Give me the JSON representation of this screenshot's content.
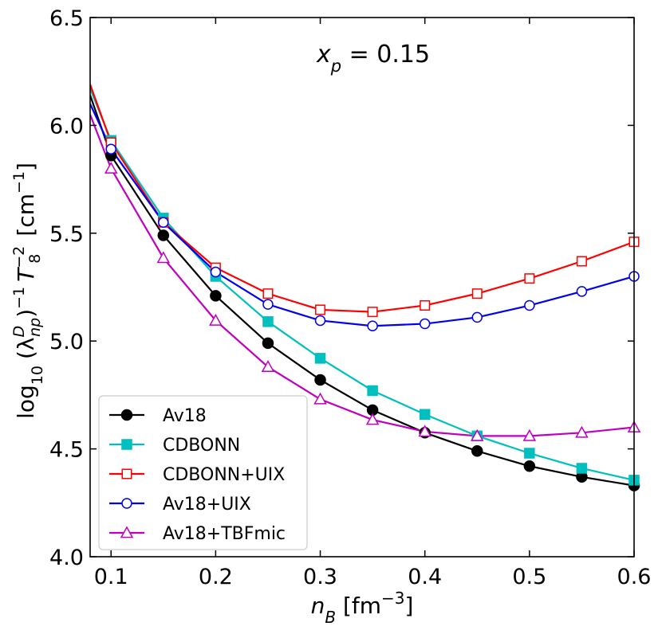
{
  "chart_data": {
    "type": "line",
    "title": "",
    "annotation": {
      "var": "x",
      "sub": "p",
      "rest": " = 0.15"
    },
    "xlabel": {
      "main": "n",
      "sub": "B",
      "unit_open": " [fm",
      "sup": "−3",
      "unit_close": "]"
    },
    "ylabel": {
      "pre": "log",
      "sub10": "10",
      "lambda": "(λ",
      "lambda_sup": "D",
      "lambda_sub": "np",
      "close": ")",
      "inv": "−1",
      "T": "T",
      "T_sub": "8",
      "T_sup": "−2",
      "unit_open": "[cm",
      "unit_sup": "−1",
      "unit_close": "]"
    },
    "xlim": [
      0.08,
      0.6
    ],
    "ylim": [
      4.0,
      6.5
    ],
    "xticks": [
      0.1,
      0.2,
      0.3,
      0.4,
      0.5,
      0.6
    ],
    "xtick_labels": [
      "0.1",
      "0.2",
      "0.3",
      "0.4",
      "0.5",
      "0.6"
    ],
    "yticks": [
      4.0,
      4.5,
      5.0,
      5.5,
      6.0,
      6.5
    ],
    "ytick_labels": [
      "4.0",
      "4.5",
      "5.0",
      "5.5",
      "6.0",
      "6.5"
    ],
    "legend_position": "lower-left",
    "series": [
      {
        "name": "Av18",
        "color": "#000000",
        "marker": "circle",
        "filled": true,
        "line_x": [
          0.08,
          0.1,
          0.15,
          0.2,
          0.25,
          0.3,
          0.35,
          0.4,
          0.45,
          0.5,
          0.55,
          0.6
        ],
        "line_y": [
          6.14,
          5.86,
          5.49,
          5.21,
          4.99,
          4.82,
          4.68,
          4.575,
          4.49,
          4.42,
          4.37,
          4.33
        ],
        "x": [
          0.1,
          0.15,
          0.2,
          0.25,
          0.3,
          0.35,
          0.4,
          0.45,
          0.5,
          0.55,
          0.6
        ],
        "y": [
          5.86,
          5.49,
          5.21,
          4.99,
          4.82,
          4.68,
          4.575,
          4.49,
          4.42,
          4.37,
          4.33
        ]
      },
      {
        "name": "CDBONN",
        "color": "#00bfbf",
        "marker": "square",
        "filled": true,
        "line_x": [
          0.08,
          0.1,
          0.15,
          0.2,
          0.25,
          0.3,
          0.35,
          0.4,
          0.45,
          0.5,
          0.55,
          0.6
        ],
        "line_y": [
          6.17,
          5.93,
          5.57,
          5.3,
          5.09,
          4.92,
          4.77,
          4.66,
          4.56,
          4.48,
          4.41,
          4.355
        ],
        "x": [
          0.1,
          0.15,
          0.2,
          0.25,
          0.3,
          0.35,
          0.4,
          0.45,
          0.5,
          0.55,
          0.6
        ],
        "y": [
          5.93,
          5.57,
          5.3,
          5.09,
          4.92,
          4.77,
          4.66,
          4.56,
          4.48,
          4.41,
          4.355
        ]
      },
      {
        "name": "CDBONN+UIX",
        "color": "#ff0000",
        "marker": "square",
        "filled": false,
        "line_x": [
          0.08,
          0.1,
          0.15,
          0.2,
          0.25,
          0.3,
          0.35,
          0.4,
          0.45,
          0.5,
          0.55,
          0.6
        ],
        "line_y": [
          6.19,
          5.92,
          5.55,
          5.34,
          5.22,
          5.145,
          5.135,
          5.165,
          5.22,
          5.29,
          5.37,
          5.46
        ],
        "x": [
          0.1,
          0.15,
          0.2,
          0.25,
          0.3,
          0.35,
          0.4,
          0.45,
          0.5,
          0.55,
          0.6
        ],
        "y": [
          5.92,
          5.55,
          5.34,
          5.22,
          5.145,
          5.135,
          5.165,
          5.22,
          5.29,
          5.37,
          5.46
        ]
      },
      {
        "name": "Av18+UIX",
        "color": "#0000ee",
        "marker": "circle",
        "filled": false,
        "line_x": [
          0.08,
          0.1,
          0.15,
          0.2,
          0.25,
          0.3,
          0.35,
          0.4,
          0.45,
          0.5,
          0.55,
          0.6
        ],
        "line_y": [
          6.1,
          5.89,
          5.55,
          5.32,
          5.17,
          5.095,
          5.07,
          5.08,
          5.11,
          5.165,
          5.23,
          5.3
        ],
        "x": [
          0.1,
          0.15,
          0.2,
          0.25,
          0.3,
          0.35,
          0.4,
          0.45,
          0.5,
          0.55,
          0.6
        ],
        "y": [
          5.89,
          5.55,
          5.32,
          5.17,
          5.095,
          5.07,
          5.08,
          5.11,
          5.165,
          5.23,
          5.3
        ]
      },
      {
        "name": "Av18+TBFmic",
        "color": "#bf00bf",
        "marker": "triangle",
        "filled": false,
        "line_x": [
          0.08,
          0.1,
          0.15,
          0.2,
          0.25,
          0.3,
          0.35,
          0.4,
          0.45,
          0.5,
          0.55,
          0.6
        ],
        "line_y": [
          6.05,
          5.8,
          5.385,
          5.095,
          4.88,
          4.73,
          4.635,
          4.58,
          4.56,
          4.56,
          4.575,
          4.6
        ],
        "x": [
          0.1,
          0.15,
          0.2,
          0.25,
          0.3,
          0.35,
          0.4,
          0.45,
          0.5,
          0.55,
          0.6
        ],
        "y": [
          5.8,
          5.385,
          5.095,
          4.88,
          4.73,
          4.635,
          4.58,
          4.56,
          4.56,
          4.575,
          4.6
        ]
      }
    ]
  }
}
